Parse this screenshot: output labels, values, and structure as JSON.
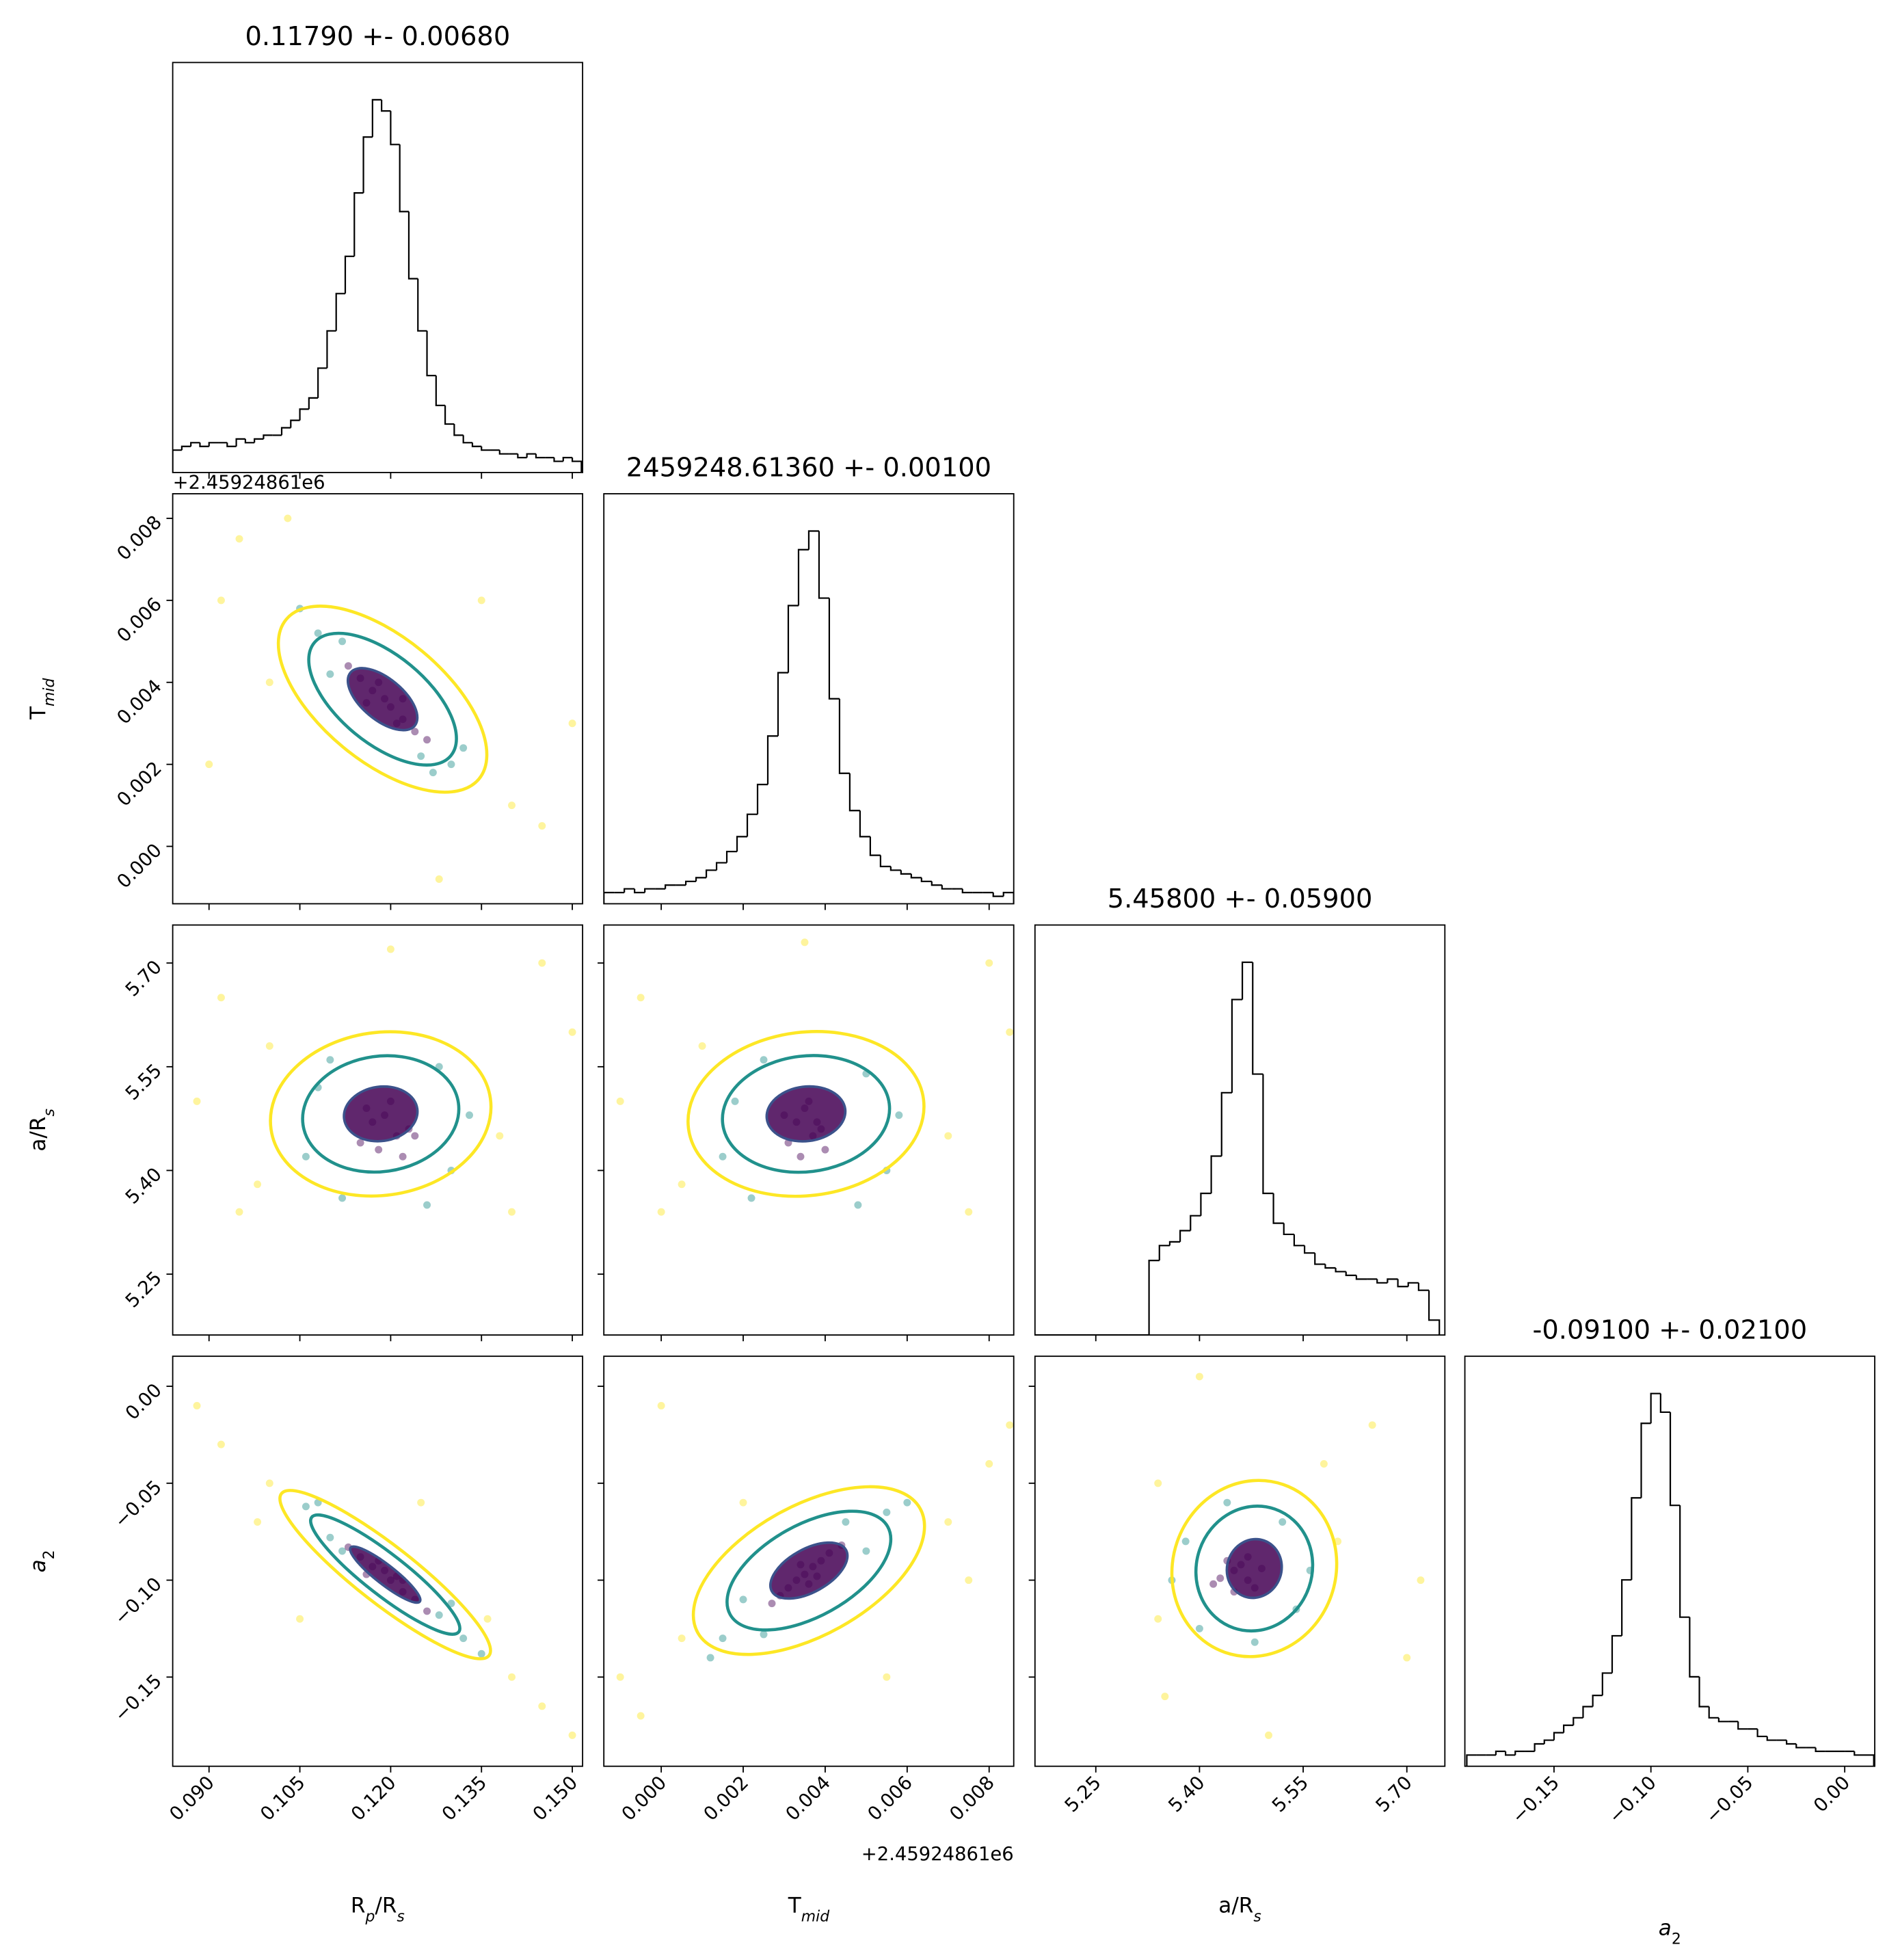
{
  "chart_data": {
    "type": "corner",
    "axes": [
      {
        "label": [
          {
            "text": "R"
          },
          {
            "text": "p",
            "sub": true,
            "italic": true
          },
          {
            "text": "/R"
          },
          {
            "text": "s",
            "sub": true,
            "italic": true
          }
        ],
        "lim": [
          0.084,
          0.1517
        ],
        "ticks": [
          {
            "value": 0.09,
            "label": "0.090"
          },
          0.105,
          {
            "value": 0.12,
            "label": "0.120"
          },
          0.135,
          {
            "value": 0.15,
            "label": "0.150"
          }
        ]
      },
      {
        "label": [
          {
            "text": "T"
          },
          {
            "text": "mid",
            "sub": true,
            "italic": true
          }
        ],
        "lim": [
          -0.0014,
          0.0086
        ],
        "offset": "+2.45924861e6",
        "ticks": [
          {
            "value": 0,
            "label": "0.000"
          },
          0.002,
          0.004,
          0.006,
          0.008
        ]
      },
      {
        "label": [
          {
            "text": "a/R"
          },
          {
            "text": "s",
            "sub": true,
            "italic": true
          }
        ],
        "lim": [
          5.162,
          5.755
        ],
        "ticks": [
          5.25,
          {
            "value": 5.4,
            "label": "5.40"
          },
          5.55,
          {
            "value": 5.7,
            "label": "5.70"
          }
        ]
      },
      {
        "label": [
          {
            "text": "a",
            "italic": true
          },
          {
            "text": "2",
            "sub": true
          }
        ],
        "lim": [
          -0.196,
          0.0155
        ],
        "ticks": [
          {
            "value": -0.15,
            "label": "−0.15"
          },
          {
            "value": -0.1,
            "label": "−0.10"
          },
          {
            "value": -0.05,
            "label": "−0.05"
          },
          {
            "value": 0,
            "label": "0.00"
          }
        ]
      }
    ],
    "diagonal": [
      {
        "title": "0.11790 +- 0.00680",
        "ylim": [
          0,
          110
        ],
        "bins": [
          0.084,
          0.0855,
          0.087,
          0.0885,
          0.09,
          0.0915,
          0.093,
          0.0945,
          0.096,
          0.0975,
          0.099,
          0.1005,
          0.102,
          0.1035,
          0.105,
          0.1065,
          0.108,
          0.1095,
          0.111,
          0.1125,
          0.114,
          0.1155,
          0.117,
          0.1185,
          0.12,
          0.1215,
          0.123,
          0.1245,
          0.126,
          0.1275,
          0.129,
          0.1305,
          0.132,
          0.1335,
          0.135,
          0.1365,
          0.138,
          0.1395,
          0.141,
          0.1425,
          0.144,
          0.1455,
          0.147,
          0.1485,
          0.15,
          0.1515
        ],
        "values": [
          6,
          7,
          8,
          7,
          8,
          8,
          7,
          9,
          8,
          9,
          10,
          10,
          12,
          14,
          17,
          20,
          28,
          38,
          48,
          58,
          75,
          90,
          100,
          97,
          88,
          70,
          52,
          38,
          26,
          18,
          13,
          10,
          8,
          7,
          6,
          6,
          5,
          5,
          4,
          5,
          4,
          4,
          3,
          4,
          3
        ]
      },
      {
        "title": "2459248.61360 +- 0.00100",
        "ylim": [
          0,
          110
        ],
        "bins": [
          -0.0014,
          -0.00115,
          -0.0009,
          -0.00065,
          -0.0004,
          -0.00015,
          0.0001,
          0.00035,
          0.0006,
          0.00085,
          0.0011,
          0.00135,
          0.0016,
          0.00185,
          0.0021,
          0.00235,
          0.0026,
          0.00285,
          0.0031,
          0.00335,
          0.0036,
          0.00385,
          0.0041,
          0.00435,
          0.0046,
          0.00485,
          0.0051,
          0.00535,
          0.0056,
          0.00585,
          0.0061,
          0.00635,
          0.0066,
          0.00685,
          0.0071,
          0.00735,
          0.0076,
          0.00785,
          0.0081,
          0.00835,
          0.0086
        ],
        "values": [
          3,
          3,
          4,
          3,
          4,
          4,
          5,
          5,
          6,
          7,
          9,
          11,
          14,
          18,
          24,
          32,
          45,
          62,
          80,
          95,
          100,
          82,
          55,
          35,
          25,
          18,
          13,
          10,
          9,
          8,
          7,
          6,
          5,
          4,
          4,
          3,
          3,
          3,
          2,
          3
        ]
      },
      {
        "title": "5.45800 +- 0.05900",
        "ylim": [
          0,
          110
        ],
        "bins": [
          5.162,
          5.177,
          5.192,
          5.207,
          5.222,
          5.237,
          5.252,
          5.267,
          5.282,
          5.297,
          5.312,
          5.327,
          5.342,
          5.357,
          5.372,
          5.387,
          5.402,
          5.417,
          5.432,
          5.447,
          5.462,
          5.477,
          5.492,
          5.507,
          5.522,
          5.537,
          5.552,
          5.567,
          5.582,
          5.597,
          5.612,
          5.627,
          5.642,
          5.657,
          5.672,
          5.687,
          5.702,
          5.717,
          5.732,
          5.747
        ],
        "values": [
          0,
          0,
          0,
          0,
          0,
          0,
          0,
          0,
          0,
          0,
          0,
          20,
          24,
          25,
          28,
          32,
          38,
          48,
          65,
          90,
          100,
          70,
          38,
          30,
          27,
          24,
          22,
          19,
          18,
          17,
          16,
          15,
          15,
          14,
          15,
          13,
          14,
          12,
          4
        ]
      },
      {
        "title": "-0.09100 +- 0.02100",
        "ylim": [
          0,
          110
        ],
        "bins": [
          -0.195,
          -0.19,
          -0.185,
          -0.18,
          -0.175,
          -0.17,
          -0.165,
          -0.16,
          -0.155,
          -0.15,
          -0.145,
          -0.14,
          -0.135,
          -0.13,
          -0.125,
          -0.12,
          -0.115,
          -0.11,
          -0.105,
          -0.1,
          -0.095,
          -0.09,
          -0.085,
          -0.08,
          -0.075,
          -0.07,
          -0.065,
          -0.06,
          -0.055,
          -0.05,
          -0.045,
          -0.04,
          -0.035,
          -0.03,
          -0.025,
          -0.02,
          -0.015,
          -0.01,
          -0.005,
          0,
          0.005,
          0.01,
          0.015
        ],
        "values": [
          3,
          3,
          3,
          4,
          3,
          4,
          4,
          6,
          7,
          9,
          11,
          13,
          16,
          19,
          25,
          35,
          50,
          72,
          92,
          100,
          95,
          70,
          40,
          24,
          16,
          13,
          12,
          12,
          10,
          10,
          8,
          7,
          7,
          6,
          5,
          5,
          4,
          4,
          4,
          4,
          3,
          3
        ]
      }
    ],
    "pairs": [
      {
        "x_axis": 0,
        "y_axis": 1,
        "groups": [
          {
            "color": "#fde725",
            "x": [
              0.095,
              0.14,
              0.1,
              0.135,
              0.09,
              0.145,
              0.103,
              0.15,
              0.128,
              0.092
            ],
            "y": [
              0.0075,
              0.001,
              0.004,
              0.006,
              0.002,
              0.0005,
              0.008,
              0.003,
              -0.0008,
              0.006
            ]
          },
          {
            "color": "#21918c",
            "x": [
              0.108,
              0.13,
              0.112,
              0.127,
              0.11,
              0.132,
              0.105,
              0.125
            ],
            "y": [
              0.0052,
              0.002,
              0.005,
              0.0018,
              0.0042,
              0.0024,
              0.0058,
              0.0022
            ]
          },
          {
            "color": "#440154",
            "x": [
              0.117,
              0.12,
              0.122,
              0.115,
              0.119,
              0.124,
              0.113,
              0.121,
              0.118,
              0.126,
              0.116,
              0.122
            ],
            "y": [
              0.0038,
              0.0034,
              0.0031,
              0.0041,
              0.0036,
              0.0028,
              0.0044,
              0.003,
              0.004,
              0.0026,
              0.0035,
              0.0036
            ]
          }
        ]
      },
      {
        "x_axis": 0,
        "y_axis": 2,
        "groups": [
          {
            "color": "#fde725",
            "x": [
              0.092,
              0.145,
              0.098,
              0.14,
              0.088,
              0.15,
              0.12,
              0.1,
              0.138,
              0.095
            ],
            "y": [
              5.65,
              5.7,
              5.38,
              5.34,
              5.5,
              5.6,
              5.72,
              5.58,
              5.45,
              5.34
            ]
          },
          {
            "color": "#21918c",
            "x": [
              0.108,
              0.13,
              0.112,
              0.128,
              0.106,
              0.133,
              0.11,
              0.126
            ],
            "y": [
              5.52,
              5.4,
              5.36,
              5.55,
              5.42,
              5.48,
              5.56,
              5.35
            ]
          },
          {
            "color": "#440154",
            "x": [
              0.117,
              0.121,
              0.119,
              0.115,
              0.123,
              0.118,
              0.12,
              0.122,
              0.116,
              0.124
            ],
            "y": [
              5.47,
              5.45,
              5.48,
              5.44,
              5.46,
              5.43,
              5.5,
              5.42,
              5.49,
              5.45
            ]
          }
        ]
      },
      {
        "x_axis": 1,
        "y_axis": 2,
        "groups": [
          {
            "color": "#fde725",
            "x": [
              -0.0005,
              0.008,
              0.0005,
              0.0075,
              -0.001,
              0.0085,
              0.0035,
              0.001,
              0.007,
              0
            ],
            "y": [
              5.65,
              5.7,
              5.38,
              5.34,
              5.5,
              5.6,
              5.73,
              5.58,
              5.45,
              5.34
            ]
          },
          {
            "color": "#21918c",
            "x": [
              0.0018,
              0.0055,
              0.0022,
              0.005,
              0.0015,
              0.0058,
              0.0025,
              0.0048
            ],
            "y": [
              5.5,
              5.4,
              5.36,
              5.54,
              5.42,
              5.48,
              5.56,
              5.35
            ]
          },
          {
            "color": "#440154",
            "x": [
              0.0033,
              0.0037,
              0.0035,
              0.0031,
              0.0039,
              0.0034,
              0.0036,
              0.004,
              0.003,
              0.0038
            ],
            "y": [
              5.47,
              5.45,
              5.49,
              5.44,
              5.46,
              5.42,
              5.5,
              5.43,
              5.48,
              5.47
            ]
          }
        ]
      },
      {
        "x_axis": 0,
        "y_axis": 3,
        "groups": [
          {
            "color": "#fde725",
            "x": [
              0.092,
              0.145,
              0.1,
              0.14,
              0.088,
              0.15,
              0.098,
              0.136,
              0.125,
              0.105
            ],
            "y": [
              -0.03,
              -0.165,
              -0.05,
              -0.15,
              -0.01,
              -0.18,
              -0.07,
              -0.12,
              -0.06,
              -0.12
            ]
          },
          {
            "color": "#21918c",
            "x": [
              0.106,
              0.132,
              0.11,
              0.128,
              0.108,
              0.135,
              0.112,
              0.13
            ],
            "y": [
              -0.062,
              -0.13,
              -0.078,
              -0.118,
              -0.06,
              -0.138,
              -0.085,
              -0.112
            ]
          },
          {
            "color": "#440154",
            "x": [
              0.117,
              0.12,
              0.122,
              0.115,
              0.119,
              0.124,
              0.113,
              0.121,
              0.118,
              0.126,
              0.116,
              0.122
            ],
            "y": [
              -0.093,
              -0.1,
              -0.106,
              -0.088,
              -0.095,
              -0.11,
              -0.083,
              -0.098,
              -0.09,
              -0.116,
              -0.097,
              -0.1
            ]
          }
        ]
      },
      {
        "x_axis": 1,
        "y_axis": 3,
        "groups": [
          {
            "color": "#fde725",
            "x": [
              -0.0005,
              0.008,
              0.0005,
              0.007,
              -0.001,
              0.0085,
              0.002,
              0.0055,
              0,
              0.0075
            ],
            "y": [
              -0.17,
              -0.04,
              -0.13,
              -0.07,
              -0.15,
              -0.02,
              -0.06,
              -0.15,
              -0.01,
              -0.1
            ]
          },
          {
            "color": "#21918c",
            "x": [
              0.0015,
              0.0055,
              0.002,
              0.005,
              0.0012,
              0.006,
              0.0025,
              0.0045
            ],
            "y": [
              -0.13,
              -0.065,
              -0.11,
              -0.085,
              -0.14,
              -0.06,
              -0.128,
              -0.07
            ]
          },
          {
            "color": "#440154",
            "x": [
              0.0033,
              0.0037,
              0.0035,
              0.0031,
              0.0039,
              0.0029,
              0.0041,
              0.0034,
              0.0036,
              0.0044,
              0.0027,
              0.0038
            ],
            "y": [
              -0.1,
              -0.093,
              -0.097,
              -0.104,
              -0.09,
              -0.108,
              -0.086,
              -0.092,
              -0.102,
              -0.082,
              -0.112,
              -0.098
            ]
          }
        ]
      },
      {
        "x_axis": 2,
        "y_axis": 3,
        "groups": [
          {
            "color": "#fde725",
            "x": [
              5.34,
              5.65,
              5.35,
              5.7,
              5.6,
              5.4,
              5.5,
              5.72,
              5.34,
              5.58
            ],
            "y": [
              -0.05,
              -0.02,
              -0.16,
              -0.14,
              -0.08,
              0.005,
              -0.18,
              -0.1,
              -0.12,
              -0.04
            ]
          },
          {
            "color": "#21918c",
            "x": [
              5.38,
              5.54,
              5.4,
              5.52,
              5.36,
              5.56,
              5.44,
              5.48
            ],
            "y": [
              -0.08,
              -0.115,
              -0.125,
              -0.07,
              -0.1,
              -0.095,
              -0.06,
              -0.132
            ]
          },
          {
            "color": "#440154",
            "x": [
              5.45,
              5.47,
              5.44,
              5.48,
              5.46,
              5.43,
              5.49,
              5.45,
              5.47,
              5.42
            ],
            "y": [
              -0.095,
              -0.1,
              -0.09,
              -0.104,
              -0.092,
              -0.099,
              -0.094,
              -0.106,
              -0.088,
              -0.102
            ]
          }
        ]
      }
    ]
  }
}
